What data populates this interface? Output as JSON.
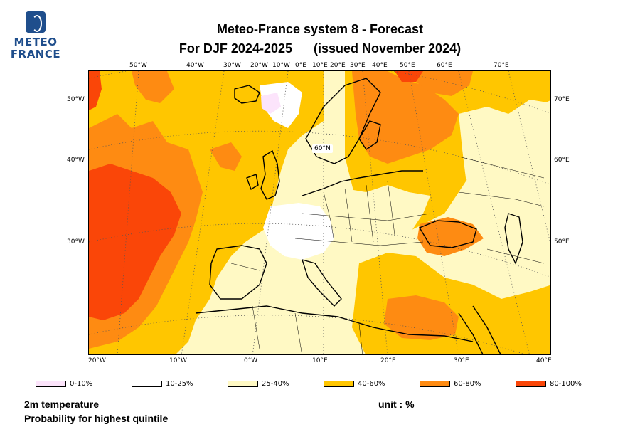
{
  "logo": {
    "line1": "METEO",
    "line2": "FRANCE",
    "color": "#1f4e8c"
  },
  "title": {
    "line1": "Meteo-France system 8  -  Forecast",
    "line2_left": "For DJF 2024-2025",
    "line2_right": "(issued November 2024)"
  },
  "map": {
    "top_lon_labels": [
      "50°W",
      "40°W",
      "30°W",
      "20°W",
      "10°W",
      "0°E",
      "10°E",
      "20°E",
      "30°E",
      "40°E",
      "50°E",
      "60°E",
      "70°E"
    ],
    "left_lat_labels": [
      "50°W",
      "40°W",
      "30°W"
    ],
    "right_labels": [
      "70°E",
      "60°E",
      "50°E"
    ],
    "bottom_labels": [
      "20°W",
      "10°W",
      "0°W",
      "10°E",
      "20°E",
      "30°E",
      "40°E"
    ],
    "inner_label": "60°N",
    "colors": {
      "p0_10": "#fce4fb",
      "p10_25": "#ffffff",
      "p25_40": "#fff9c4",
      "p40_60": "#ffc600",
      "p60_80": "#fe8b12",
      "p80_100": "#fa4608",
      "coast": "#000000",
      "border": "#000000"
    }
  },
  "legend": [
    {
      "label": "0-10%",
      "color": "#fce4fb"
    },
    {
      "label": "10-25%",
      "color": "#ffffff"
    },
    {
      "label": "25-40%",
      "color": "#fff9c4"
    },
    {
      "label": "40-60%",
      "color": "#ffc600"
    },
    {
      "label": "60-80%",
      "color": "#fe8b12"
    },
    {
      "label": "80-100%",
      "color": "#fa4608"
    }
  ],
  "footer": {
    "variable": "2m temperature",
    "metric": "Probability for highest quintile",
    "unit": "unit : %"
  }
}
